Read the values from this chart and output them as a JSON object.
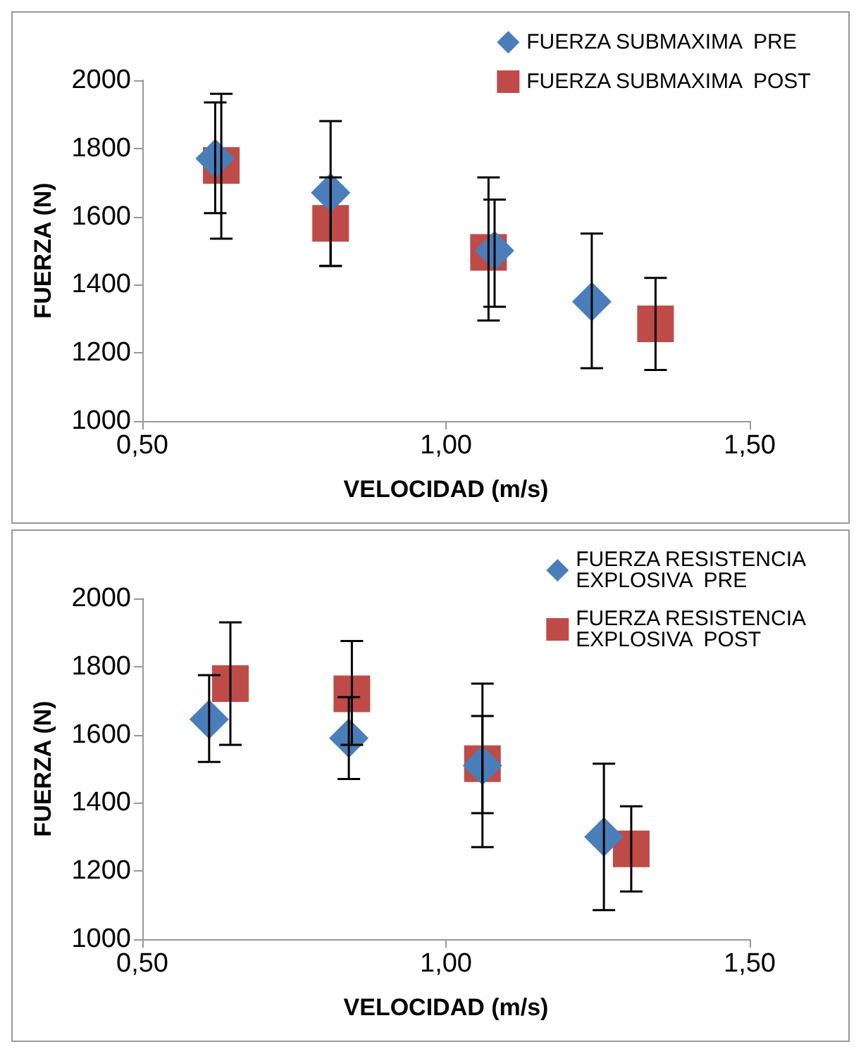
{
  "chart_data": [
    {
      "type": "scatter",
      "xlabel": "VELOCIDAD (m/s)",
      "ylabel": "FUERZA (N)",
      "xlim": [
        0.5,
        1.5
      ],
      "xticks": [
        {
          "value": 0.5,
          "label": "0,50"
        },
        {
          "value": 1.0,
          "label": "1,00"
        },
        {
          "value": 1.5,
          "label": "1,50"
        }
      ],
      "ylim": [
        1000,
        2000
      ],
      "yticks": [
        1000,
        1200,
        1400,
        1600,
        1800,
        2000
      ],
      "grid": false,
      "legend": "top right",
      "series": [
        {
          "name": "FUERZA SUBMAXIMA  PRE",
          "color": "#4a7ebb",
          "marker": "diamond",
          "x": [
            0.62,
            0.81,
            1.08,
            1.24
          ],
          "values": [
            1770,
            1670,
            1500,
            1350
          ],
          "errors": [
            [
              1610,
              1935
            ],
            [
              1455,
              1880
            ],
            [
              1335,
              1650
            ],
            [
              1155,
              1550
            ]
          ]
        },
        {
          "name": "FUERZA SUBMAXIMA  POST",
          "color": "#be4b48",
          "marker": "square",
          "x": [
            0.63,
            0.81,
            1.07,
            1.345
          ],
          "values": [
            1750,
            1580,
            1495,
            1285
          ],
          "errors": [
            [
              1535,
              1960
            ],
            [
              1455,
              1715
            ],
            [
              1295,
              1715
            ],
            [
              1150,
              1420
            ]
          ]
        }
      ]
    },
    {
      "type": "scatter",
      "xlabel": "VELOCIDAD (m/s)",
      "ylabel": "FUERZA (N)",
      "xlim": [
        0.5,
        1.5
      ],
      "xticks": [
        {
          "value": 0.5,
          "label": "0,50"
        },
        {
          "value": 1.0,
          "label": "1,00"
        },
        {
          "value": 1.5,
          "label": "1,50"
        }
      ],
      "ylim": [
        1000,
        2000
      ],
      "yticks": [
        1000,
        1200,
        1400,
        1600,
        1800,
        2000
      ],
      "grid": false,
      "legend": "top right",
      "series": [
        {
          "name": "FUERZA RESISTENCIA EXPLOSIVA  PRE",
          "color": "#4a7ebb",
          "marker": "diamond",
          "x": [
            0.61,
            0.84,
            1.06,
            1.26
          ],
          "values": [
            1645,
            1590,
            1510,
            1300
          ],
          "errors": [
            [
              1520,
              1775
            ],
            [
              1470,
              1710
            ],
            [
              1370,
              1655
            ],
            [
              1085,
              1515
            ]
          ]
        },
        {
          "name": "FUERZA RESISTENCIA EXPLOSIVA  POST",
          "color": "#be4b48",
          "marker": "square",
          "x": [
            0.645,
            0.845,
            1.06,
            1.305
          ],
          "values": [
            1750,
            1720,
            1515,
            1265
          ],
          "errors": [
            [
              1570,
              1930
            ],
            [
              1570,
              1875
            ],
            [
              1270,
              1750
            ],
            [
              1140,
              1390
            ]
          ]
        }
      ]
    }
  ]
}
